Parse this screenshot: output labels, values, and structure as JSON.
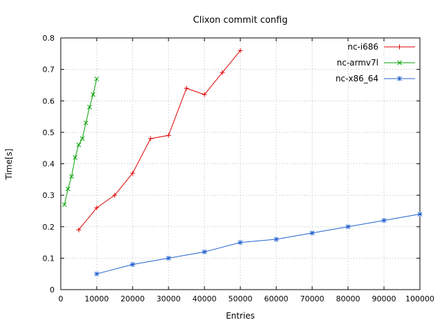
{
  "chart_data": {
    "type": "line",
    "title": "Clixon commit config",
    "xlabel": "Entries",
    "ylabel": "Time[s]",
    "xlim": [
      0,
      100000
    ],
    "ylim": [
      0,
      0.8
    ],
    "xticks": [
      0,
      10000,
      20000,
      30000,
      40000,
      50000,
      60000,
      70000,
      80000,
      90000,
      100000
    ],
    "xtick_labels": [
      "0",
      "10000",
      "20000",
      "30000",
      "40000",
      "50000",
      "60000",
      "70000",
      "80000",
      "90000",
      "100000"
    ],
    "yticks": [
      0,
      0.1,
      0.2,
      0.3,
      0.4,
      0.5,
      0.6,
      0.7,
      0.8
    ],
    "ytick_labels": [
      "0",
      "0.1",
      "0.2",
      "0.3",
      "0.4",
      "0.5",
      "0.6",
      "0.7",
      "0.8"
    ],
    "grid": true,
    "grid_color": "#b8b8b8",
    "axis_color": "#000000",
    "legend_position": "top-right",
    "series": [
      {
        "name": "nc-i686",
        "color": "#e00000",
        "marker": "plus",
        "x": [
          5000,
          10000,
          15000,
          20000,
          25000,
          30000,
          35000,
          40000,
          45000,
          50000
        ],
        "y": [
          0.19,
          0.26,
          0.3,
          0.37,
          0.48,
          0.49,
          0.64,
          0.62,
          0.69,
          0.76
        ]
      },
      {
        "name": "nc-armv7l",
        "color": "#00a000",
        "marker": "cross",
        "x": [
          1000,
          2000,
          3000,
          4000,
          5000,
          6000,
          7000,
          8000,
          9000,
          10000
        ],
        "y": [
          0.27,
          0.32,
          0.36,
          0.42,
          0.46,
          0.48,
          0.53,
          0.58,
          0.62,
          0.67
        ]
      },
      {
        "name": "nc-x86_64",
        "color": "#2060d0",
        "marker": "asterisk",
        "x": [
          10000,
          20000,
          30000,
          40000,
          50000,
          60000,
          70000,
          80000,
          90000,
          100000
        ],
        "y": [
          0.05,
          0.08,
          0.1,
          0.12,
          0.15,
          0.16,
          0.18,
          0.2,
          0.22,
          0.24
        ]
      }
    ]
  }
}
